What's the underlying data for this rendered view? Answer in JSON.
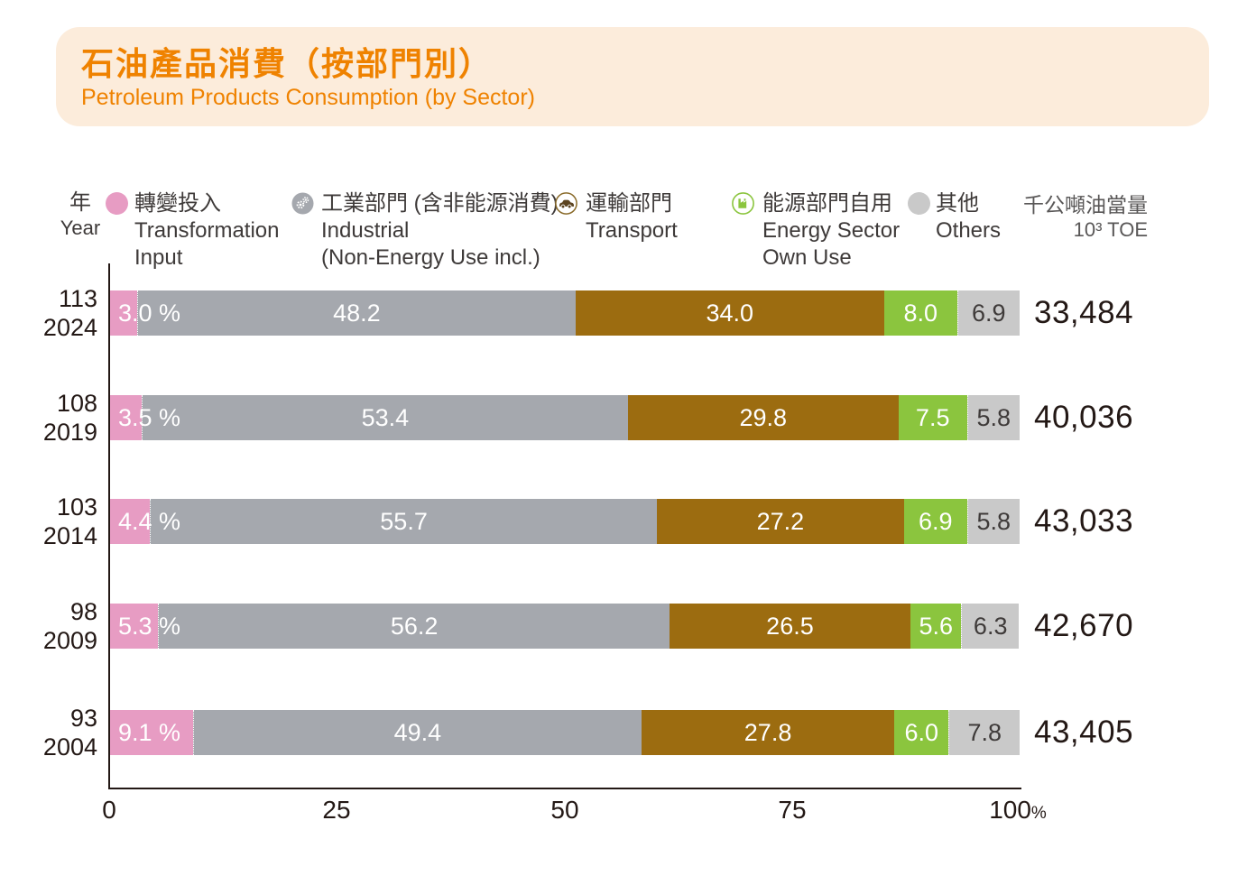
{
  "header": {
    "title": "石油產品消費（按部門別）",
    "subtitle": "Petroleum Products Consumption (by Sector)"
  },
  "colors": {
    "accent_orange": "#ef8200",
    "panel_peach": "#fcecdb",
    "axis_dark": "#231815"
  },
  "chart_data": {
    "type": "bar",
    "variant": "horizontal-stacked-percentage",
    "title": "石油產品消費（按部門別）",
    "subtitle": "Petroleum Products Consumption (by Sector)",
    "year_axis_label": {
      "zh": "年",
      "en": "Year"
    },
    "unit_label": {
      "zh": "千公噸油當量",
      "en": "10³ TOE"
    },
    "x_axis": {
      "ticks": [
        "0",
        "25",
        "50",
        "75",
        "100"
      ],
      "suffix": "%",
      "range": [
        0,
        100
      ],
      "grid": false
    },
    "series": [
      {
        "key": "transformation-input",
        "zh": "轉變投入",
        "en1": "Transformation",
        "en2": "Input",
        "color": "#e79cc3",
        "icon": "pink-dot"
      },
      {
        "key": "industrial",
        "zh": "工業部門 (含非能源消費)",
        "en1": "Industrial",
        "en2": "(Non-Energy Use incl.)",
        "color": "#a5a8ae",
        "icon": "gears"
      },
      {
        "key": "transport",
        "zh": "運輸部門",
        "en1": "Transport",
        "en2": "",
        "color": "#9c6c10",
        "icon": "car"
      },
      {
        "key": "energy-sector-own-use",
        "zh": "能源部門自用",
        "en1": "Energy Sector",
        "en2": "Own Use",
        "color": "#8bc53e",
        "icon": "factory"
      },
      {
        "key": "others",
        "zh": "其他",
        "en1": "Others",
        "en2": "",
        "color": "#c9c9c9",
        "icon": "gray-dot"
      }
    ],
    "rows": [
      {
        "roc_year": "113",
        "year": "2024",
        "values": [
          3.0,
          48.2,
          34.0,
          8.0,
          6.9
        ],
        "labels": [
          "3.0 %",
          "48.2",
          "34.0",
          "8.0",
          "6.9"
        ],
        "total": "33,484"
      },
      {
        "roc_year": "108",
        "year": "2019",
        "values": [
          3.5,
          53.4,
          29.8,
          7.5,
          5.8
        ],
        "labels": [
          "3.5 %",
          "53.4",
          "29.8",
          "7.5",
          "5.8"
        ],
        "total": "40,036"
      },
      {
        "roc_year": "103",
        "year": "2014",
        "values": [
          4.4,
          55.7,
          27.2,
          6.9,
          5.8
        ],
        "labels": [
          "4.4 %",
          "55.7",
          "27.2",
          "6.9",
          "5.8"
        ],
        "total": "43,033"
      },
      {
        "roc_year": "98",
        "year": "2009",
        "values": [
          5.3,
          56.2,
          26.5,
          5.6,
          6.3
        ],
        "labels": [
          "5.3 %",
          "56.2",
          "26.5",
          "5.6",
          "6.3"
        ],
        "total": "42,670"
      },
      {
        "roc_year": "93",
        "year": "2004",
        "values": [
          9.1,
          49.4,
          27.8,
          6.0,
          7.8
        ],
        "labels": [
          "9.1 %",
          "49.4",
          "27.8",
          "6.0",
          "7.8"
        ],
        "total": "43,405"
      }
    ]
  }
}
